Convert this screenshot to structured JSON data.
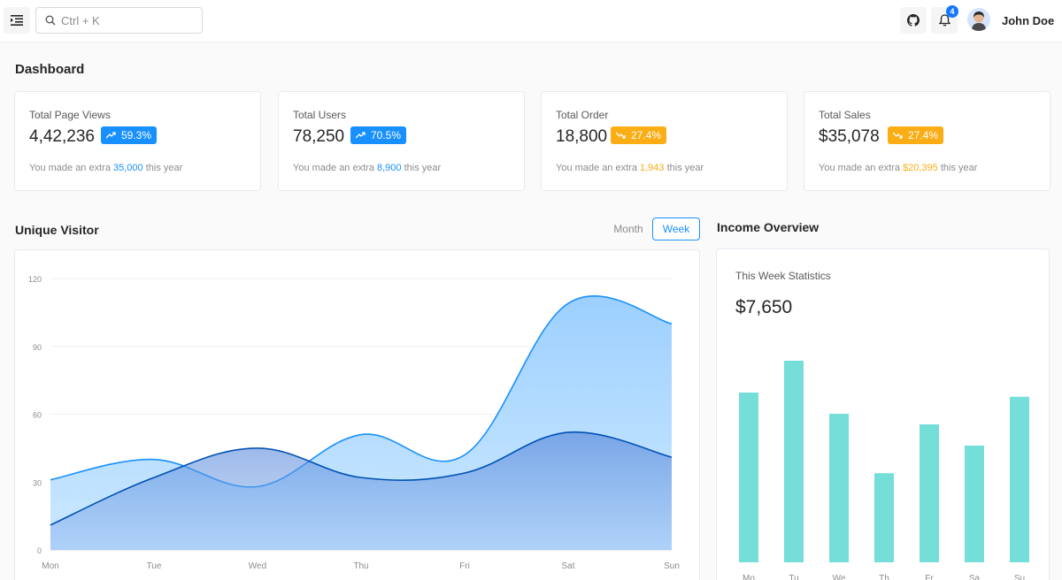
{
  "header": {
    "search_placeholder": "Ctrl + K",
    "notification_count": "4",
    "user_name": "John Doe",
    "icons": [
      "menu-icon",
      "search-icon",
      "github-icon",
      "bell-icon"
    ]
  },
  "page": {
    "title": "Dashboard"
  },
  "cards": [
    {
      "label": "Total Page Views",
      "value": "4,42,236",
      "pct": "59.3%",
      "trend": "up",
      "color": "#1890ff",
      "note_pre": "You made an extra ",
      "note_val": "35,000",
      "note_post": " this year"
    },
    {
      "label": "Total Users",
      "value": "78,250",
      "pct": "70.5%",
      "trend": "up",
      "color": "#1890ff",
      "note_pre": "You made an extra ",
      "note_val": "8,900",
      "note_post": " this year"
    },
    {
      "label": "Total Order",
      "value": "18,800",
      "pct": "27.4%",
      "trend": "down",
      "color": "#faad14",
      "note_pre": "You made an extra ",
      "note_val": "1,943",
      "note_post": " this year"
    },
    {
      "label": "Total Sales",
      "value": "$35,078",
      "pct": "27.4%",
      "trend": "down",
      "color": "#faad14",
      "note_pre": "You made an extra ",
      "note_val": "$20,395",
      "note_post": " this year"
    }
  ],
  "visitor": {
    "title": "Unique Visitor",
    "toggle_month": "Month",
    "toggle_week": "Week",
    "active": "Week"
  },
  "income": {
    "title": "Income Overview",
    "subtitle": "This Week Statistics",
    "total": "$7,650"
  },
  "chart_data": [
    {
      "type": "area",
      "categories": [
        "Mon",
        "Tue",
        "Wed",
        "Thu",
        "Fri",
        "Sat",
        "Sun"
      ],
      "ylim": [
        0,
        120
      ],
      "yticks": [
        0,
        30,
        60,
        90,
        120
      ],
      "grid": true,
      "series": [
        {
          "values": [
            31,
            40,
            28,
            51,
            42,
            109,
            100
          ],
          "color": "#1890ff"
        },
        {
          "values": [
            11,
            32,
            45,
            32,
            34,
            52,
            41
          ],
          "color": "#0050b3"
        }
      ]
    },
    {
      "type": "bar",
      "categories": [
        "Mo",
        "Tu",
        "We",
        "Th",
        "Fr",
        "Sa",
        "Su"
      ],
      "values": [
        80,
        95,
        70,
        42,
        65,
        55,
        78
      ],
      "color": "#76ded8"
    }
  ]
}
